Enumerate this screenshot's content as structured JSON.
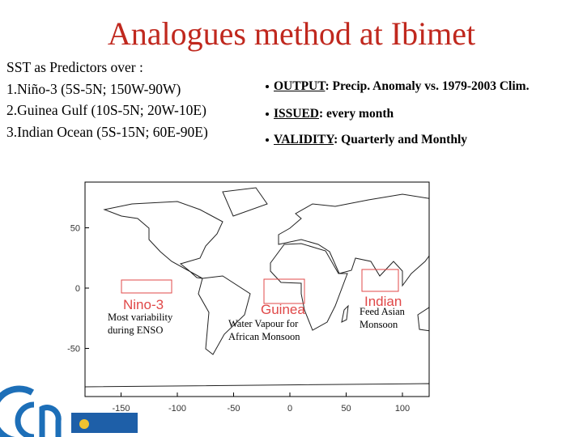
{
  "title": "Analogues method at Ibimet",
  "predictors": {
    "heading": "SST as Predictors over :",
    "items": [
      "1.Niño-3 (5S-5N; 150W-90W)",
      "2.Guinea Gulf (10S-5N; 20W-10E)",
      "3.Indian Ocean (5S-15N; 60E-90E)"
    ]
  },
  "bullets": [
    {
      "key": "OUTPUT",
      "text": ": Precip. Anomaly vs. 1979-2003 Clim."
    },
    {
      "key": "ISSUED",
      "text": ": every month"
    },
    {
      "key": "VALIDITY",
      "text": ": Quarterly and Monthly"
    }
  ],
  "map": {
    "xticks": [
      -150,
      -100,
      -50,
      0,
      50,
      100
    ],
    "yticks": [
      50,
      0,
      -50
    ],
    "regions": [
      {
        "label": "Nino-3",
        "note": "Most variability during ENSO"
      },
      {
        "label": "Guinea",
        "note": "Water Vapour for African Monsoon"
      },
      {
        "label": "Indian",
        "note": "Feed Asian Monsoon"
      }
    ]
  }
}
